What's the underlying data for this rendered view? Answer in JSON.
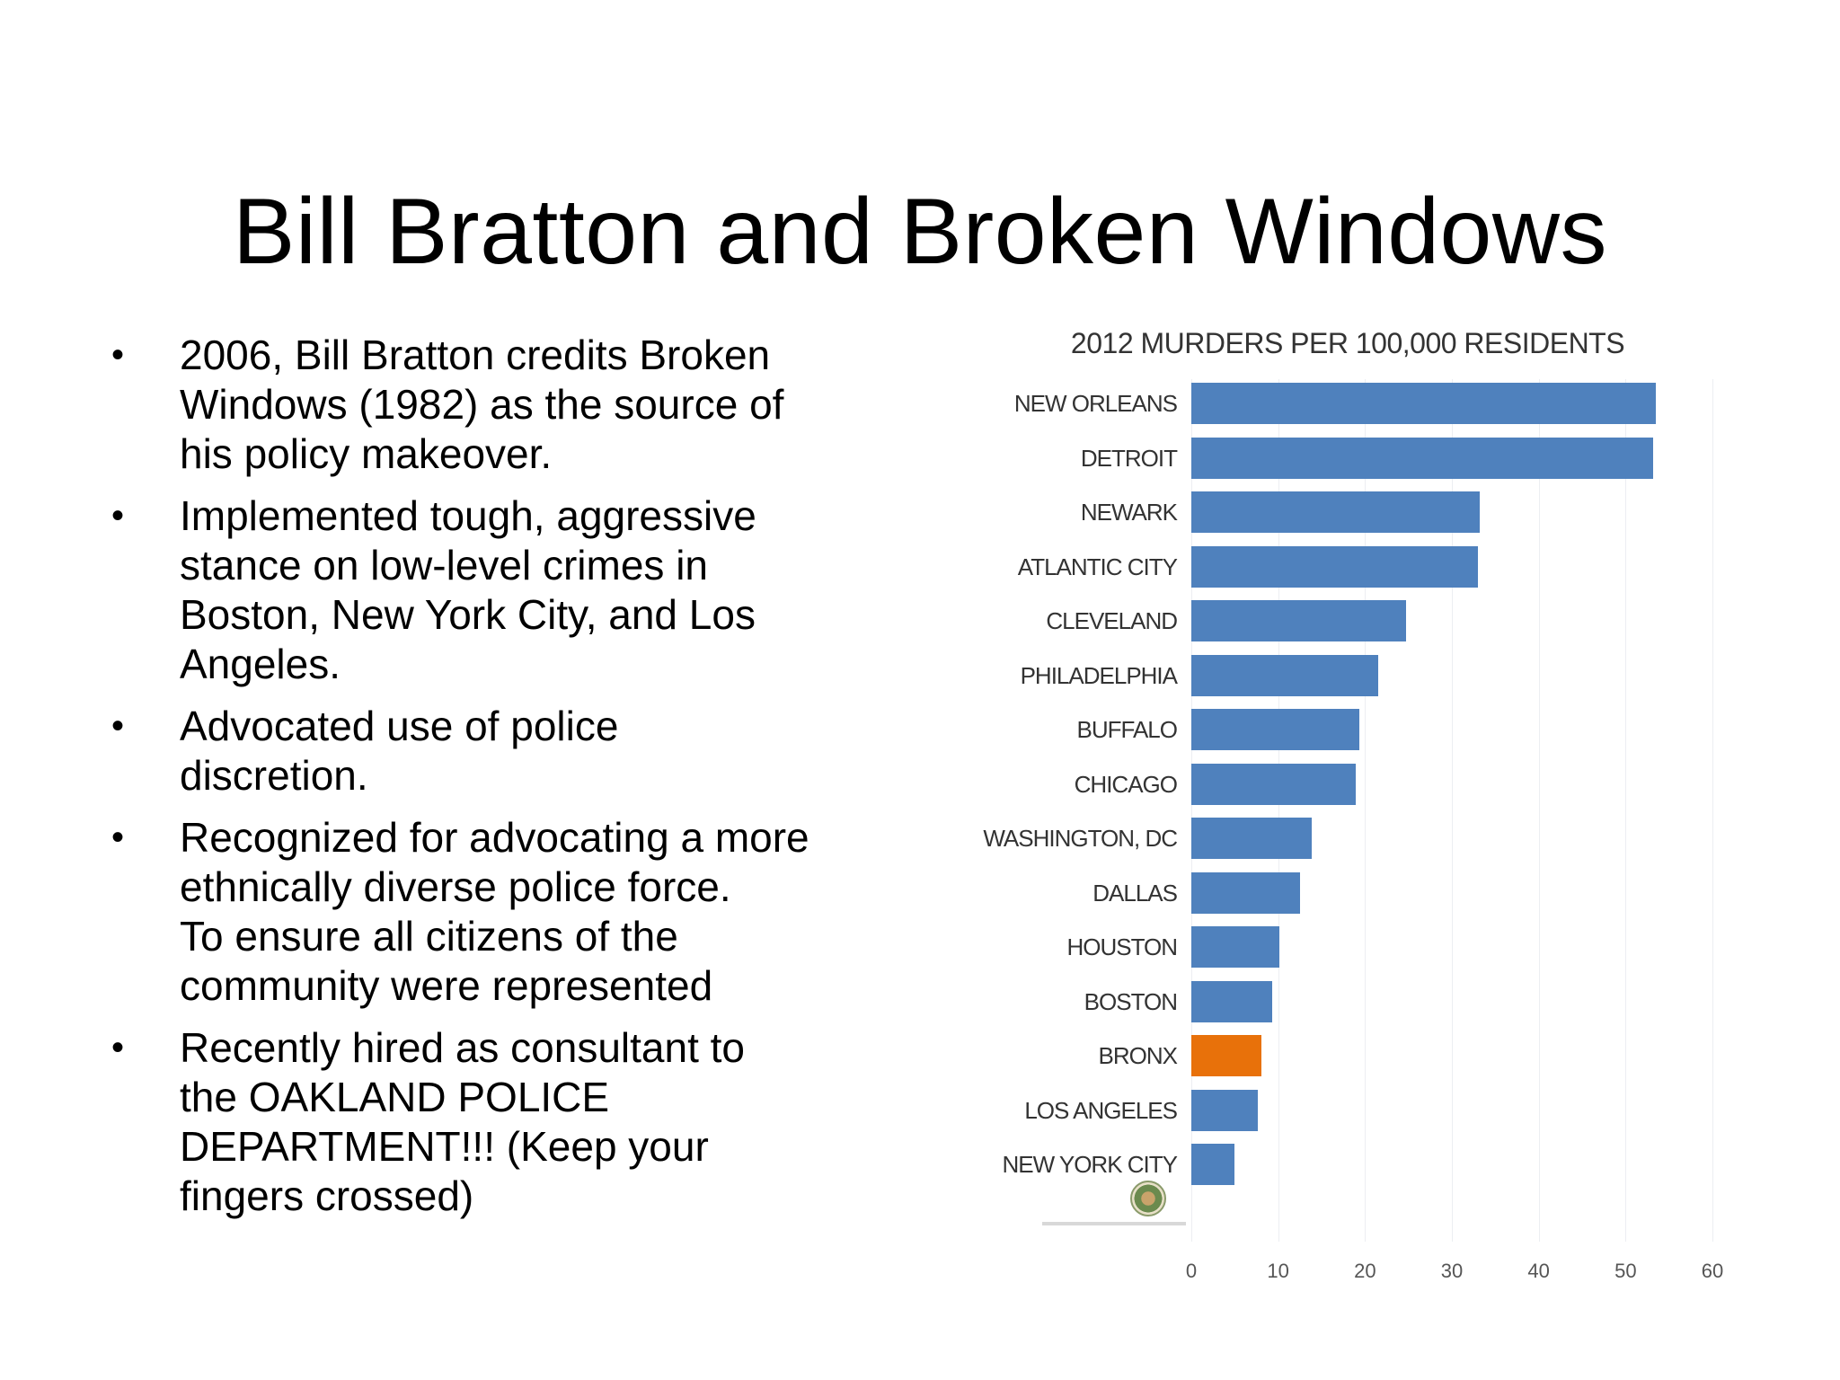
{
  "slide": {
    "title": "Bill Bratton and Broken Windows",
    "bullets": [
      "2006, Bill Bratton credits Broken\nWindows (1982) as the source of\nhis policy makeover.",
      "Implemented tough, aggressive\nstance on low-level crimes in\nBoston, New York City, and Los\nAngeles.",
      "Advocated use of police\ndiscretion.",
      "Recognized for advocating a more\nethnically diverse police force.\nTo ensure all citizens of the\ncommunity were represented",
      "Recently hired as consultant to\nthe OAKLAND POLICE\nDEPARTMENT!!! (Keep your\nfingers crossed)"
    ],
    "bullet_glyph": "•"
  },
  "colors": {
    "bar_default": "#4F81BD",
    "bar_highlight": "#E8710A"
  },
  "chart_data": {
    "type": "bar",
    "orientation": "horizontal",
    "title": "2012 MURDERS PER 100,000 RESIDENTS",
    "xlabel": "",
    "ylabel": "",
    "categories": [
      "NEW ORLEANS",
      "DETROIT",
      "NEWARK",
      "ATLANTIC CITY",
      "CLEVELAND",
      "PHILADELPHIA",
      "BUFFALO",
      "CHICAGO",
      "WASHINGTON, DC",
      "DALLAS",
      "HOUSTON",
      "BOSTON",
      "BRONX",
      "LOS ANGELES",
      "NEW YORK CITY"
    ],
    "values": [
      53.5,
      53.2,
      33.2,
      33.0,
      24.7,
      21.5,
      19.3,
      18.9,
      13.9,
      12.5,
      10.1,
      9.3,
      8.1,
      7.7,
      5.0
    ],
    "highlight": [
      "BRONX"
    ],
    "xlim": [
      0,
      60
    ],
    "xticks": [
      "0",
      "10",
      "20",
      "30",
      "40",
      "50",
      "60"
    ],
    "grid": true,
    "legend": null
  }
}
